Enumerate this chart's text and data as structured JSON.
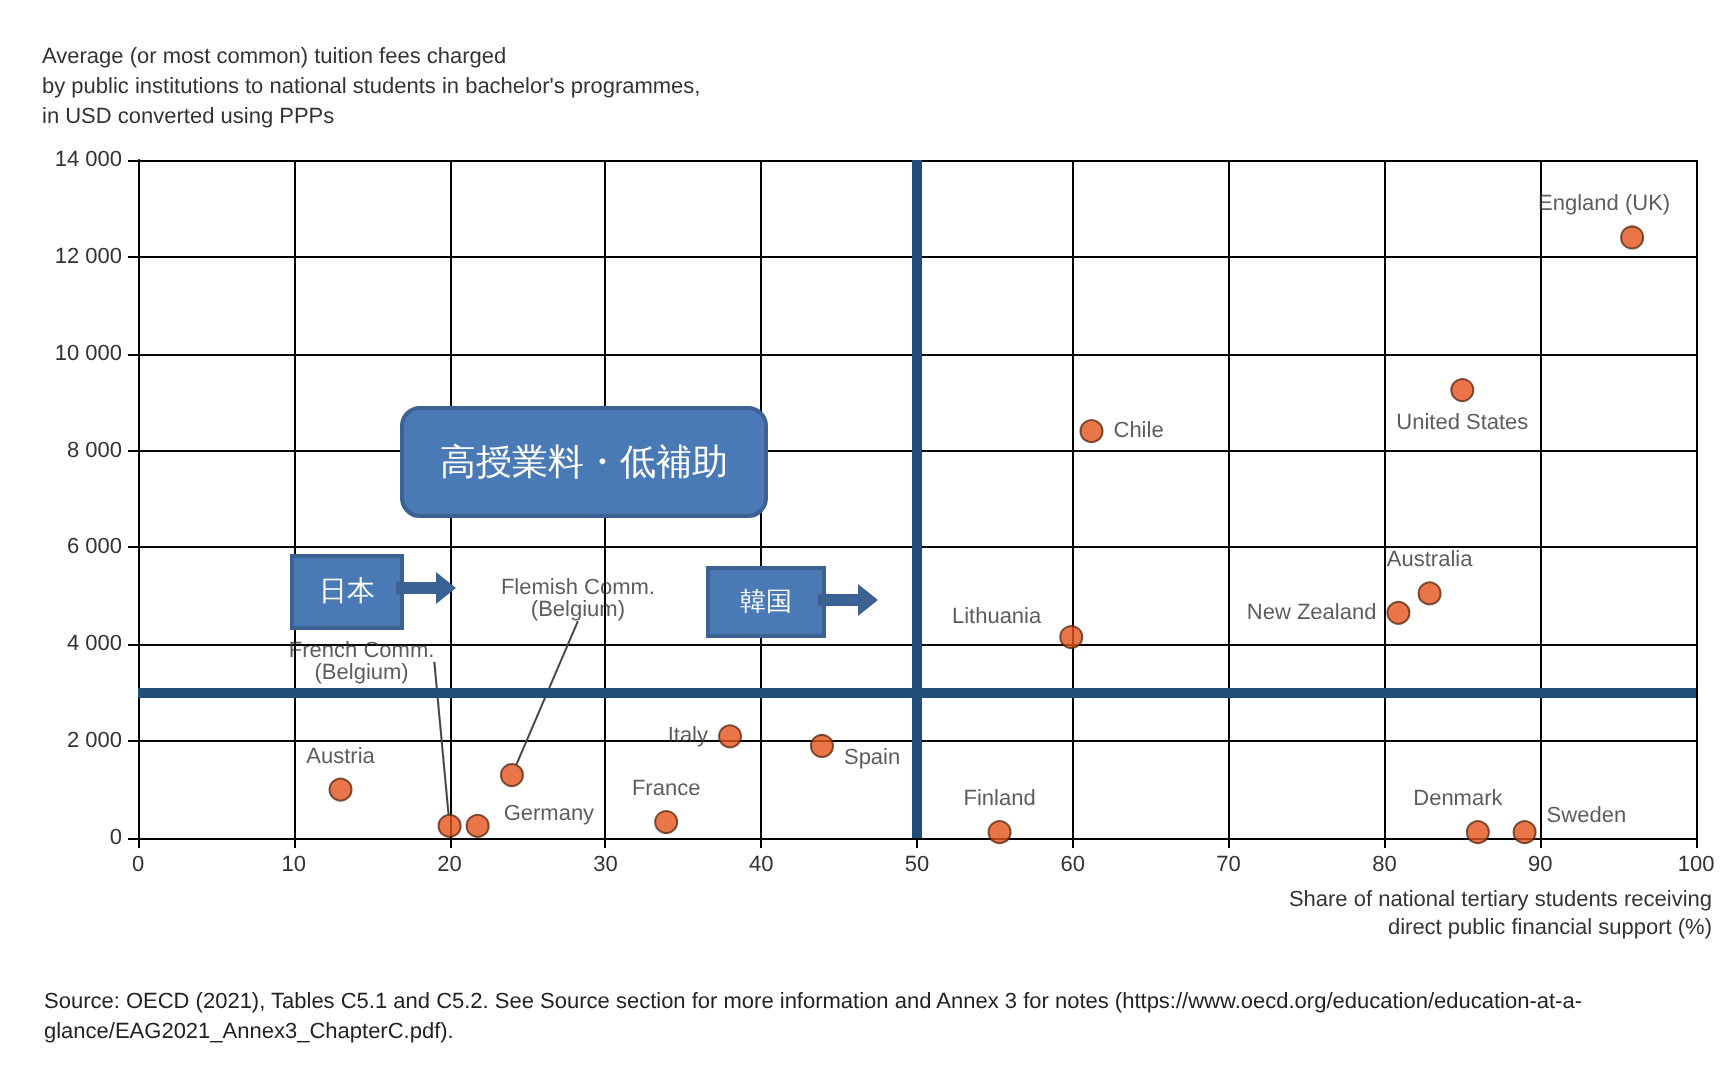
{
  "chart_data": {
    "type": "scatter",
    "ylabel": "Average (or most common) tuition fees charged\nby public institutions to national students in bachelor's programmes,\nin USD converted using PPPs",
    "xlabel": "Share of national tertiary students receiving\ndirect public financial support (%)",
    "x": [
      13.0,
      20.0,
      21.8,
      24.0,
      33.9,
      38.0,
      43.9,
      55.3,
      59.9,
      61.2,
      85.0,
      95.9,
      80.9,
      82.9,
      86.0,
      89.0
    ],
    "series": [
      {
        "color": "#e4531b",
        "values": [
          1000,
          250,
          250,
          1300,
          330,
          2100,
          1900,
          120,
          4150,
          8400,
          9250,
          12400,
          4650,
          5050,
          120,
          120
        ],
        "value_labels": [
          "Austria",
          "French Comm.\n(Belgium)",
          "Germany",
          "Flemish Comm.\n(Belgium)",
          "France",
          "Italy",
          "Spain",
          "Finland",
          "Lithuania",
          "Chile",
          "United States",
          "England (UK)",
          "New Zealand",
          "Australia",
          "Denmark",
          "Sweden"
        ]
      }
    ],
    "xlim": [
      0,
      100
    ],
    "xticks": [
      0,
      10,
      20,
      30,
      40,
      50,
      60,
      70,
      80,
      90,
      100
    ],
    "ylim": [
      0,
      14000
    ],
    "yticks": [
      {
        "value": 0,
        "label": "0"
      },
      {
        "value": 2000,
        "label": "2 000"
      },
      {
        "value": 4000,
        "label": "4 000"
      },
      {
        "value": 6000,
        "label": "6 000"
      },
      {
        "value": 8000,
        "label": "8 000"
      },
      {
        "value": 10000,
        "label": "10 000"
      },
      {
        "value": 12000,
        "label": "12 000"
      },
      {
        "value": 14000,
        "label": "14 000"
      }
    ],
    "grid": true,
    "marker": "circle",
    "ref_lines": [
      {
        "axis": "x",
        "value": 50,
        "color": "#1f4e79"
      },
      {
        "axis": "y",
        "value": 3000,
        "color": "#1f4e79"
      }
    ],
    "annotations": [
      "高授業料・低補助",
      "日本",
      "韓国",
      "Source: OECD (2021), Tables C5.1 and C5.2. See Source section for more information and Annex 3 for notes (https://www.oecd.org/education/education-at-a-glance/EAG2021_Annex3_ChapterC.pdf)."
    ]
  }
}
